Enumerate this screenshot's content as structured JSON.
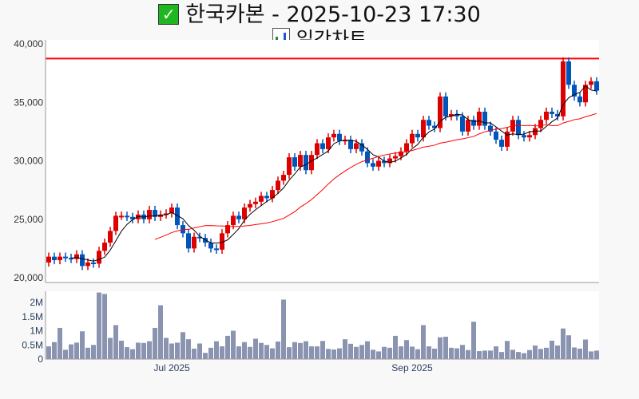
{
  "header": {
    "title": "한국카본 - 2025-10-23 17:30",
    "subtitle": "일간차트",
    "title_icon": "check-icon",
    "subtitle_icon": "bar-chart-icon"
  },
  "colors": {
    "up": "#dd0000",
    "down": "#0055bb",
    "ma5": "#000000",
    "ma20": "#ff0000",
    "resistance": "#ff0000",
    "volume": "#8a93b0"
  },
  "chart_data": {
    "type": "candlestick",
    "title": "한국카본 - 2025-10-23 17:30",
    "price_axis": {
      "ticks": [
        20000,
        25000,
        30000,
        35000,
        40000
      ],
      "tick_labels": [
        "20,000",
        "25,000",
        "30,000",
        "35,000",
        "40,000"
      ],
      "range": [
        20000,
        40000
      ]
    },
    "volume_axis": {
      "ticks": [
        0,
        0.5,
        1,
        1.5,
        2
      ],
      "tick_labels": [
        "0",
        "0.5M",
        "1M",
        "1.5M",
        "2M"
      ],
      "range": [
        0,
        2.5
      ]
    },
    "x_ticks": [
      {
        "index": 22,
        "label": "Jul 2025"
      },
      {
        "index": 65,
        "label": "Sep 2025"
      }
    ],
    "resistance_line": 38750,
    "open": [
      21300,
      21800,
      21500,
      21800,
      21700,
      21600,
      22000,
      21000,
      21300,
      21200,
      22300,
      23000,
      24000,
      25300,
      25300,
      25200,
      25000,
      25400,
      25000,
      25800,
      25200,
      25400,
      25500,
      26000,
      24500,
      23800,
      22500,
      23500,
      23400,
      23000,
      22500,
      22400,
      23800,
      24500,
      25300,
      25000,
      26000,
      26300,
      26500,
      27000,
      26800,
      27500,
      28300,
      28800,
      30300,
      29500,
      30500,
      29200,
      30500,
      31500,
      31000,
      32000,
      32300,
      31700,
      31800,
      31000,
      31500,
      30800,
      29800,
      29500,
      30000,
      29800,
      30200,
      30400,
      30800,
      31500,
      32300,
      32000,
      33500,
      33000,
      32800,
      35500,
      33800,
      34000,
      33800,
      32500,
      33500,
      33000,
      34200,
      33000,
      32500,
      31800,
      31200,
      32500,
      33500,
      32200,
      32000,
      32200,
      32800,
      33500,
      34200,
      34000,
      33800,
      38500,
      36500,
      35500,
      35000,
      36500,
      36800
    ],
    "close": [
      21800,
      21500,
      21800,
      21700,
      21600,
      22000,
      21000,
      21300,
      21200,
      22300,
      23000,
      24000,
      25300,
      25300,
      25200,
      25000,
      25400,
      25000,
      25800,
      25200,
      25400,
      25500,
      26000,
      24500,
      23800,
      22500,
      23500,
      23400,
      23000,
      22500,
      22400,
      23800,
      24500,
      25300,
      25000,
      26000,
      26300,
      26500,
      27000,
      26800,
      27500,
      28300,
      28800,
      30300,
      29500,
      30500,
      29200,
      30500,
      31500,
      31000,
      32000,
      32300,
      31700,
      31800,
      31000,
      31500,
      30800,
      29800,
      29500,
      30000,
      29800,
      30200,
      30400,
      30800,
      31500,
      32300,
      32000,
      33500,
      33000,
      32800,
      35500,
      33800,
      34000,
      33800,
      32500,
      33500,
      33000,
      34200,
      33000,
      32500,
      31800,
      31200,
      32500,
      33500,
      32200,
      32000,
      32200,
      32800,
      33500,
      34200,
      34000,
      33800,
      38500,
      36500,
      35500,
      35000,
      36500,
      36800,
      36000
    ],
    "volume_m": [
      0.45,
      0.6,
      1.1,
      0.33,
      0.52,
      0.58,
      0.98,
      0.4,
      0.5,
      2.35,
      2.3,
      0.75,
      1.2,
      0.65,
      0.42,
      0.35,
      0.58,
      0.57,
      0.63,
      1.1,
      1.9,
      0.75,
      0.55,
      0.58,
      0.95,
      0.7,
      0.37,
      0.55,
      0.22,
      0.4,
      0.63,
      0.45,
      0.82,
      1.0,
      0.45,
      0.6,
      0.43,
      0.72,
      0.57,
      0.5,
      0.38,
      0.62,
      2.1,
      0.42,
      0.6,
      0.57,
      0.63,
      0.45,
      0.45,
      0.64,
      0.36,
      0.34,
      0.38,
      0.7,
      0.54,
      0.43,
      0.5,
      0.63,
      0.33,
      0.27,
      0.43,
      0.4,
      0.82,
      0.45,
      0.67,
      0.44,
      0.35,
      1.2,
      0.45,
      0.37,
      0.77,
      0.79,
      0.4,
      0.38,
      0.5,
      0.32,
      1.32,
      0.28,
      0.3,
      0.3,
      0.45,
      0.25,
      0.64,
      0.33,
      0.25,
      0.21,
      0.32,
      0.48,
      0.36,
      0.4,
      0.65,
      0.48,
      1.08,
      0.84,
      0.41,
      0.37,
      0.69,
      0.27,
      0.3
    ],
    "series": [
      {
        "name": "MA5",
        "window": 5
      },
      {
        "name": "MA20",
        "window": 20
      }
    ]
  }
}
